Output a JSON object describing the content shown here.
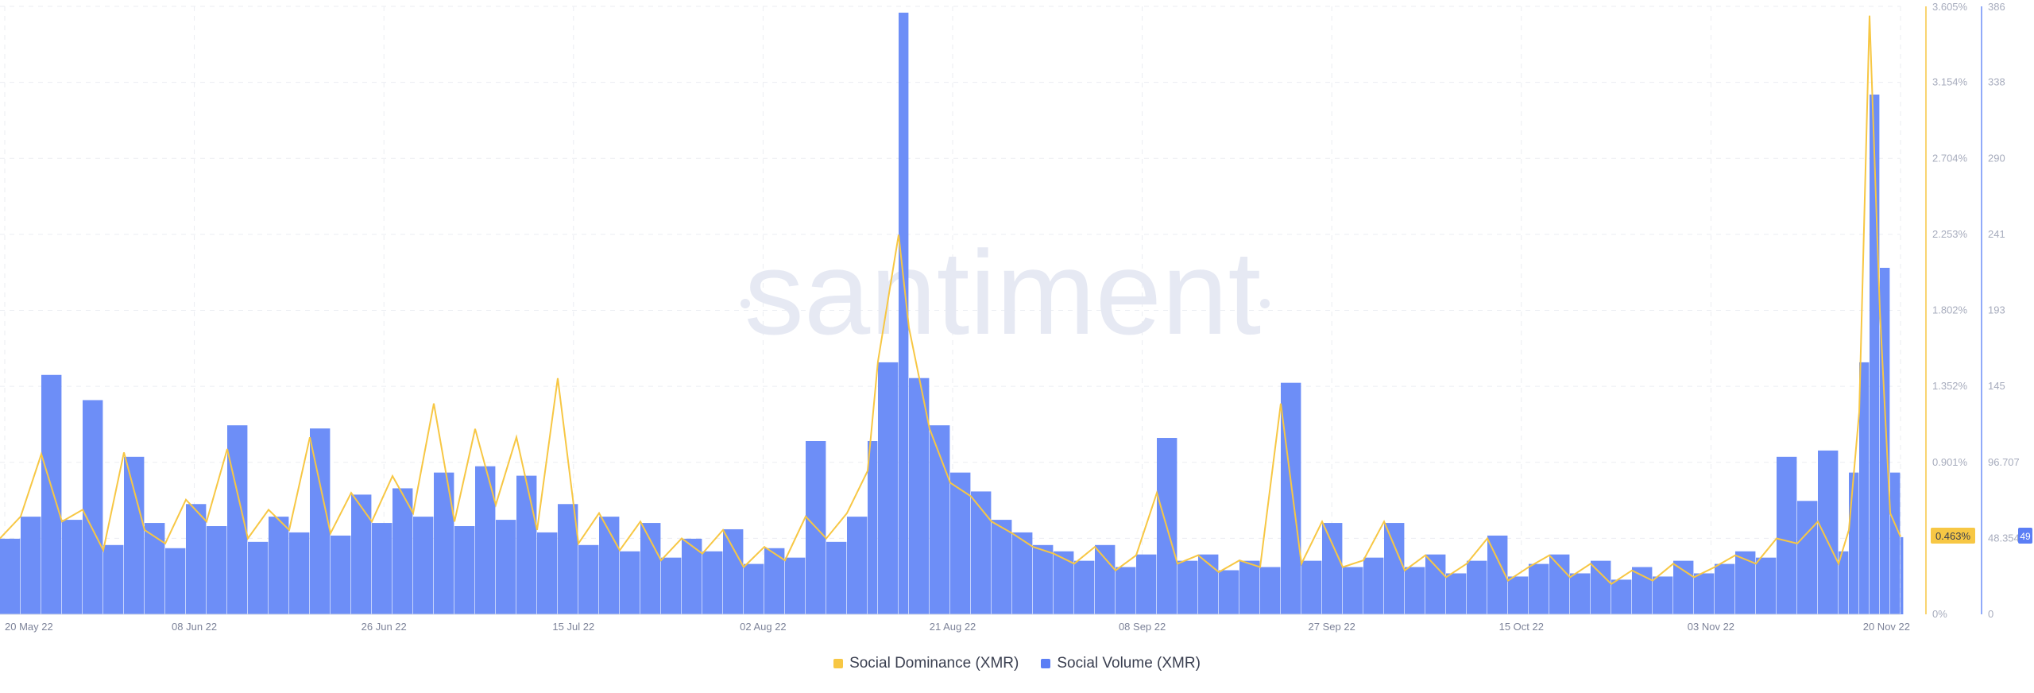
{
  "watermark": "santiment",
  "chart_data": {
    "type": "bar",
    "x_ticks": [
      "20 May 22",
      "08 Jun 22",
      "26 Jun 22",
      "15 Jul 22",
      "02 Aug 22",
      "21 Aug 22",
      "08 Sep 22",
      "27 Sep 22",
      "15 Oct 22",
      "03 Nov 22",
      "20 Nov 22"
    ],
    "x_range": [
      "2022-05-20",
      "2022-11-20"
    ],
    "y_left": {
      "ticks": [
        "0%",
        "0.451%",
        "0.901%",
        "1.352%",
        "1.802%",
        "2.253%",
        "2.704%",
        "3.154%",
        "3.605%"
      ],
      "range": [
        0,
        3.605
      ],
      "unit": "%"
    },
    "y_right": {
      "ticks": [
        "0",
        "48.354",
        "96.707",
        "145",
        "193",
        "241",
        "290",
        "338",
        "386"
      ],
      "range": [
        0,
        386
      ]
    },
    "current_values": {
      "dominance": "0.463%",
      "volume": "49"
    },
    "series": [
      {
        "name": "Social Dominance (XMR)",
        "type": "line",
        "color": "#f7c744",
        "axis": "left",
        "points": [
          [
            "2022-05-20",
            0.45
          ],
          [
            "2022-05-22",
            0.58
          ],
          [
            "2022-05-24",
            0.95
          ],
          [
            "2022-05-26",
            0.55
          ],
          [
            "2022-05-28",
            0.62
          ],
          [
            "2022-05-30",
            0.38
          ],
          [
            "2022-06-01",
            0.96
          ],
          [
            "2022-06-03",
            0.5
          ],
          [
            "2022-06-05",
            0.42
          ],
          [
            "2022-06-07",
            0.68
          ],
          [
            "2022-06-09",
            0.55
          ],
          [
            "2022-06-11",
            0.98
          ],
          [
            "2022-06-13",
            0.45
          ],
          [
            "2022-06-15",
            0.62
          ],
          [
            "2022-06-17",
            0.5
          ],
          [
            "2022-06-19",
            1.05
          ],
          [
            "2022-06-21",
            0.48
          ],
          [
            "2022-06-23",
            0.72
          ],
          [
            "2022-06-25",
            0.55
          ],
          [
            "2022-06-27",
            0.82
          ],
          [
            "2022-06-29",
            0.6
          ],
          [
            "2022-07-01",
            1.25
          ],
          [
            "2022-07-03",
            0.55
          ],
          [
            "2022-07-05",
            1.1
          ],
          [
            "2022-07-07",
            0.65
          ],
          [
            "2022-07-09",
            1.05
          ],
          [
            "2022-07-11",
            0.5
          ],
          [
            "2022-07-13",
            1.4
          ],
          [
            "2022-07-15",
            0.42
          ],
          [
            "2022-07-17",
            0.6
          ],
          [
            "2022-07-19",
            0.38
          ],
          [
            "2022-07-21",
            0.55
          ],
          [
            "2022-07-23",
            0.32
          ],
          [
            "2022-07-25",
            0.45
          ],
          [
            "2022-07-27",
            0.36
          ],
          [
            "2022-07-29",
            0.5
          ],
          [
            "2022-07-31",
            0.28
          ],
          [
            "2022-08-02",
            0.4
          ],
          [
            "2022-08-04",
            0.32
          ],
          [
            "2022-08-06",
            0.58
          ],
          [
            "2022-08-08",
            0.45
          ],
          [
            "2022-08-10",
            0.6
          ],
          [
            "2022-08-12",
            0.85
          ],
          [
            "2022-08-13",
            1.5
          ],
          [
            "2022-08-15",
            2.25
          ],
          [
            "2022-08-16",
            1.7
          ],
          [
            "2022-08-18",
            1.1
          ],
          [
            "2022-08-20",
            0.78
          ],
          [
            "2022-08-22",
            0.7
          ],
          [
            "2022-08-24",
            0.55
          ],
          [
            "2022-08-26",
            0.48
          ],
          [
            "2022-08-28",
            0.4
          ],
          [
            "2022-08-30",
            0.36
          ],
          [
            "2022-09-01",
            0.3
          ],
          [
            "2022-09-03",
            0.4
          ],
          [
            "2022-09-05",
            0.26
          ],
          [
            "2022-09-07",
            0.35
          ],
          [
            "2022-09-09",
            0.72
          ],
          [
            "2022-09-11",
            0.3
          ],
          [
            "2022-09-13",
            0.35
          ],
          [
            "2022-09-15",
            0.25
          ],
          [
            "2022-09-17",
            0.32
          ],
          [
            "2022-09-19",
            0.28
          ],
          [
            "2022-09-21",
            1.25
          ],
          [
            "2022-09-23",
            0.3
          ],
          [
            "2022-09-25",
            0.55
          ],
          [
            "2022-09-27",
            0.28
          ],
          [
            "2022-09-29",
            0.32
          ],
          [
            "2022-10-01",
            0.55
          ],
          [
            "2022-10-03",
            0.26
          ],
          [
            "2022-10-05",
            0.35
          ],
          [
            "2022-10-07",
            0.22
          ],
          [
            "2022-10-09",
            0.3
          ],
          [
            "2022-10-11",
            0.45
          ],
          [
            "2022-10-13",
            0.2
          ],
          [
            "2022-10-15",
            0.28
          ],
          [
            "2022-10-17",
            0.35
          ],
          [
            "2022-10-19",
            0.22
          ],
          [
            "2022-10-21",
            0.3
          ],
          [
            "2022-10-23",
            0.18
          ],
          [
            "2022-10-25",
            0.26
          ],
          [
            "2022-10-27",
            0.2
          ],
          [
            "2022-10-29",
            0.3
          ],
          [
            "2022-10-31",
            0.22
          ],
          [
            "2022-11-02",
            0.28
          ],
          [
            "2022-11-04",
            0.35
          ],
          [
            "2022-11-06",
            0.3
          ],
          [
            "2022-11-08",
            0.45
          ],
          [
            "2022-11-10",
            0.42
          ],
          [
            "2022-11-12",
            0.55
          ],
          [
            "2022-11-14",
            0.3
          ],
          [
            "2022-11-15",
            0.5
          ],
          [
            "2022-11-16",
            1.2
          ],
          [
            "2022-11-17",
            3.55
          ],
          [
            "2022-11-18",
            1.8
          ],
          [
            "2022-11-19",
            0.6
          ],
          [
            "2022-11-20",
            0.46
          ]
        ]
      },
      {
        "name": "Social Volume (XMR)",
        "type": "bar",
        "color": "#6d8ef7",
        "axis": "right",
        "points": [
          [
            "2022-05-20",
            48
          ],
          [
            "2022-05-22",
            62
          ],
          [
            "2022-05-24",
            152
          ],
          [
            "2022-05-26",
            60
          ],
          [
            "2022-05-28",
            136
          ],
          [
            "2022-05-30",
            44
          ],
          [
            "2022-06-01",
            100
          ],
          [
            "2022-06-03",
            58
          ],
          [
            "2022-06-05",
            42
          ],
          [
            "2022-06-07",
            70
          ],
          [
            "2022-06-09",
            56
          ],
          [
            "2022-06-11",
            120
          ],
          [
            "2022-06-13",
            46
          ],
          [
            "2022-06-15",
            62
          ],
          [
            "2022-06-17",
            52
          ],
          [
            "2022-06-19",
            118
          ],
          [
            "2022-06-21",
            50
          ],
          [
            "2022-06-23",
            76
          ],
          [
            "2022-06-25",
            58
          ],
          [
            "2022-06-27",
            80
          ],
          [
            "2022-06-29",
            62
          ],
          [
            "2022-07-01",
            90
          ],
          [
            "2022-07-03",
            56
          ],
          [
            "2022-07-05",
            94
          ],
          [
            "2022-07-07",
            60
          ],
          [
            "2022-07-09",
            88
          ],
          [
            "2022-07-11",
            52
          ],
          [
            "2022-07-13",
            70
          ],
          [
            "2022-07-15",
            44
          ],
          [
            "2022-07-17",
            62
          ],
          [
            "2022-07-19",
            40
          ],
          [
            "2022-07-21",
            58
          ],
          [
            "2022-07-23",
            36
          ],
          [
            "2022-07-25",
            48
          ],
          [
            "2022-07-27",
            40
          ],
          [
            "2022-07-29",
            54
          ],
          [
            "2022-07-31",
            32
          ],
          [
            "2022-08-02",
            42
          ],
          [
            "2022-08-04",
            36
          ],
          [
            "2022-08-06",
            110
          ],
          [
            "2022-08-08",
            46
          ],
          [
            "2022-08-10",
            62
          ],
          [
            "2022-08-12",
            110
          ],
          [
            "2022-08-13",
            160
          ],
          [
            "2022-08-15",
            382
          ],
          [
            "2022-08-16",
            150
          ],
          [
            "2022-08-18",
            120
          ],
          [
            "2022-08-20",
            90
          ],
          [
            "2022-08-22",
            78
          ],
          [
            "2022-08-24",
            60
          ],
          [
            "2022-08-26",
            52
          ],
          [
            "2022-08-28",
            44
          ],
          [
            "2022-08-30",
            40
          ],
          [
            "2022-09-01",
            34
          ],
          [
            "2022-09-03",
            44
          ],
          [
            "2022-09-05",
            30
          ],
          [
            "2022-09-07",
            38
          ],
          [
            "2022-09-09",
            112
          ],
          [
            "2022-09-11",
            34
          ],
          [
            "2022-09-13",
            38
          ],
          [
            "2022-09-15",
            28
          ],
          [
            "2022-09-17",
            34
          ],
          [
            "2022-09-19",
            30
          ],
          [
            "2022-09-21",
            147
          ],
          [
            "2022-09-23",
            34
          ],
          [
            "2022-09-25",
            58
          ],
          [
            "2022-09-27",
            30
          ],
          [
            "2022-09-29",
            36
          ],
          [
            "2022-10-01",
            58
          ],
          [
            "2022-10-03",
            30
          ],
          [
            "2022-10-05",
            38
          ],
          [
            "2022-10-07",
            26
          ],
          [
            "2022-10-09",
            34
          ],
          [
            "2022-10-11",
            50
          ],
          [
            "2022-10-13",
            24
          ],
          [
            "2022-10-15",
            32
          ],
          [
            "2022-10-17",
            38
          ],
          [
            "2022-10-19",
            26
          ],
          [
            "2022-10-21",
            34
          ],
          [
            "2022-10-23",
            22
          ],
          [
            "2022-10-25",
            30
          ],
          [
            "2022-10-27",
            24
          ],
          [
            "2022-10-29",
            34
          ],
          [
            "2022-10-31",
            26
          ],
          [
            "2022-11-02",
            32
          ],
          [
            "2022-11-04",
            40
          ],
          [
            "2022-11-06",
            36
          ],
          [
            "2022-11-08",
            100
          ],
          [
            "2022-11-10",
            72
          ],
          [
            "2022-11-12",
            104
          ],
          [
            "2022-11-14",
            40
          ],
          [
            "2022-11-15",
            90
          ],
          [
            "2022-11-16",
            160
          ],
          [
            "2022-11-17",
            330
          ],
          [
            "2022-11-18",
            220
          ],
          [
            "2022-11-19",
            90
          ],
          [
            "2022-11-20",
            49
          ]
        ]
      }
    ]
  }
}
